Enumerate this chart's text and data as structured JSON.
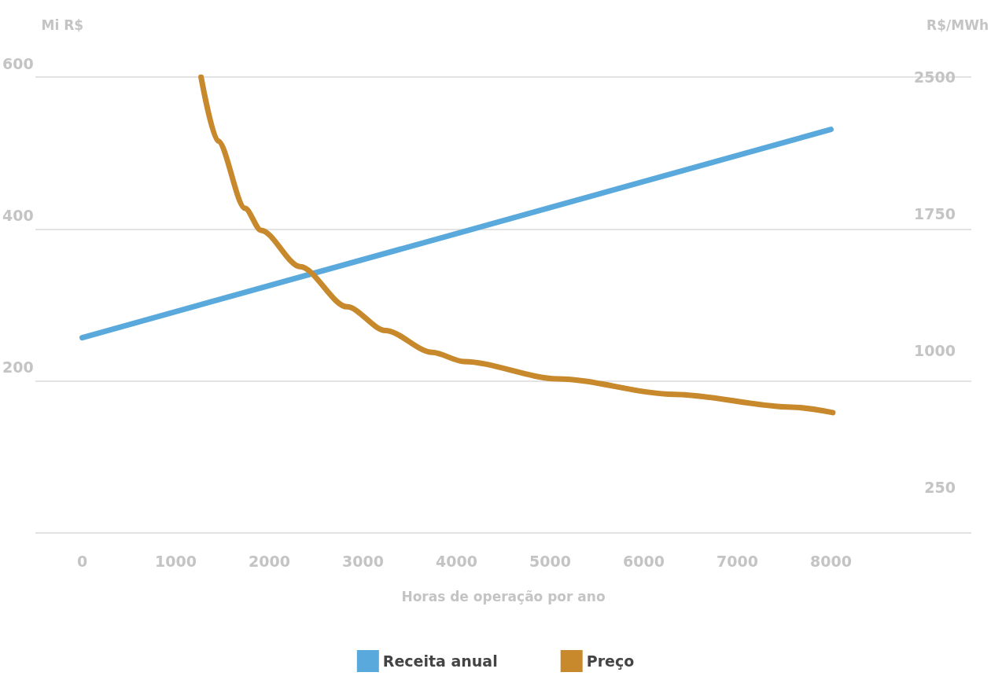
{
  "chart_data": {
    "type": "line",
    "xlabel": "Horas de operação por ano",
    "ylabel": "Mi R$",
    "y2label": "R$/MWh",
    "xlim": [
      -500,
      9500
    ],
    "xticks": [
      0,
      1000,
      2000,
      3000,
      4000,
      5000,
      6000,
      7000,
      8000
    ],
    "ylim": [
      0,
      600
    ],
    "yticks": [
      {
        "value": 0,
        "label": null
      },
      200,
      400,
      600
    ],
    "y2lim": [
      0,
      2500
    ],
    "y2ticks": [
      250,
      1000,
      1750,
      2500
    ],
    "grid": "y",
    "legend": "bottom",
    "marker": "none",
    "line_style": "solid",
    "series": [
      {
        "name": "Receita anual",
        "color": "#5aa9dc",
        "x": [
          0,
          8000
        ],
        "values": [
          257,
          531
        ]
      },
      {
        "name": "Preço",
        "color": "#c8892c",
        "axis": "y2",
        "x": [
          1270,
          1450,
          1740,
          1910,
          2330,
          2830,
          3240,
          3740,
          4080,
          5080,
          6330,
          7580,
          8020
        ],
        "values": [
          2500,
          2150,
          1780,
          1660,
          1460,
          1240,
          1110,
          990,
          940,
          845,
          760,
          690,
          660
        ]
      }
    ]
  }
}
